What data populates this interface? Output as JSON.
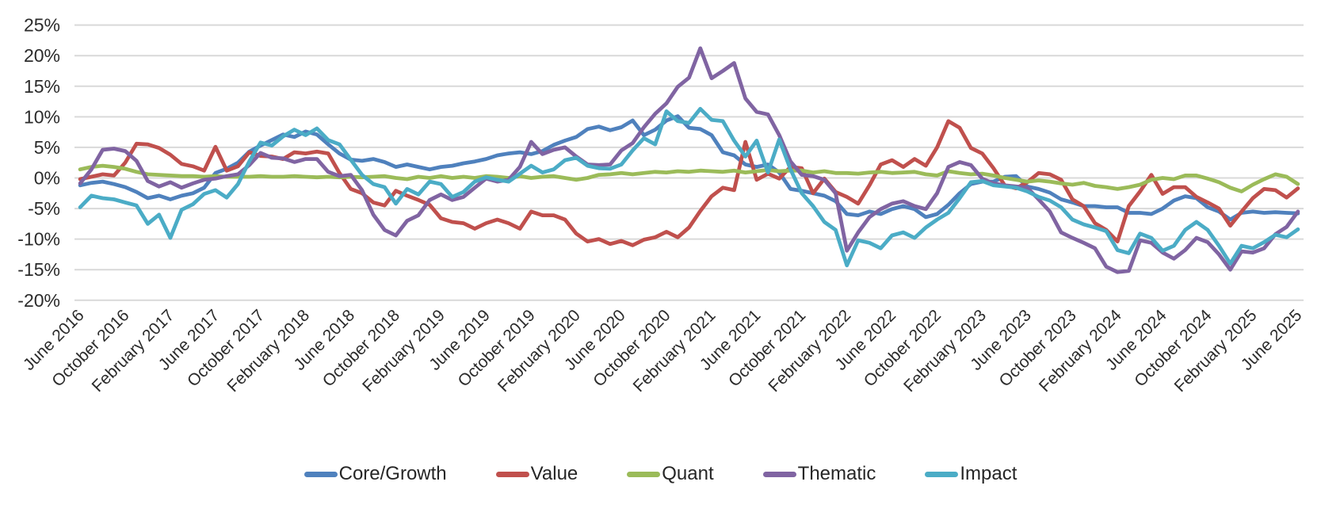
{
  "chart_data": {
    "type": "line",
    "title": "",
    "xlabel": "",
    "ylabel": "",
    "x_start": "June 2016",
    "x_end": "June 2025",
    "x_frequency": "monthly",
    "points_per_series": 109,
    "x_tick_every": 4,
    "x_tick_labels": [
      "June 2016",
      "October 2016",
      "February 2017",
      "June 2017",
      "October 2017",
      "February 2018",
      "June 2018",
      "October 2018",
      "February 2019",
      "June 2019",
      "October 2019",
      "February 2020",
      "June 2020",
      "October 2020",
      "February 2021",
      "June 2021",
      "October 2021",
      "February 2022",
      "June 2022",
      "October 2022",
      "February 2023",
      "June 2023",
      "October 2023",
      "February 2024",
      "June 2024",
      "October 2024",
      "February 2025",
      "June 2025"
    ],
    "ylim": [
      -20,
      25
    ],
    "y_ticks": [
      25,
      20,
      15,
      10,
      5,
      0,
      -5,
      -10,
      -15,
      -20
    ],
    "y_tick_suffix": "%",
    "grid": "horizontal",
    "grid_color": "#d9d9d9",
    "text_color": "#2b2b2b",
    "legend_position": "bottom",
    "series": [
      {
        "name": "Core/Growth",
        "color": "#4F81BD",
        "values": [
          -1.2,
          -0.8,
          -0.6,
          -1.0,
          -1.5,
          -2.3,
          -3.3,
          -2.9,
          -3.5,
          -2.9,
          -2.5,
          -1.6,
          0.8,
          1.5,
          2.5,
          4.3,
          5.3,
          6.2,
          7.1,
          6.7,
          7.6,
          7.1,
          5.5,
          4.0,
          3.0,
          2.8,
          3.1,
          2.6,
          1.8,
          2.2,
          1.8,
          1.4,
          1.8,
          2.0,
          2.4,
          2.7,
          3.1,
          3.7,
          4.0,
          4.2,
          3.9,
          4.4,
          5.4,
          6.1,
          6.7,
          8.0,
          8.4,
          7.8,
          8.3,
          9.4,
          7.0,
          7.9,
          9.4,
          10.1,
          8.2,
          8.0,
          7.0,
          4.2,
          3.7,
          2.2,
          1.8,
          2.2,
          0.9,
          -1.8,
          -2.1,
          -2.5,
          -2.9,
          -3.8,
          -5.9,
          -6.1,
          -5.5,
          -5.9,
          -5.1,
          -4.6,
          -5.1,
          -6.4,
          -5.9,
          -4.4,
          -2.5,
          -1.0,
          -0.6,
          -0.6,
          0.2,
          0.3,
          -1.4,
          -1.8,
          -2.4,
          -3.5,
          -4.0,
          -4.6,
          -4.6,
          -4.8,
          -4.8,
          -5.7,
          -5.7,
          -5.9,
          -5.0,
          -3.7,
          -3.0,
          -3.3,
          -4.8,
          -5.5,
          -6.8,
          -5.7,
          -5.5,
          -5.7,
          -5.6,
          -5.7,
          -5.8
        ]
      },
      {
        "name": "Value",
        "color": "#C0504D",
        "values": [
          -0.2,
          0.2,
          0.6,
          0.4,
          2.5,
          5.6,
          5.5,
          4.9,
          3.8,
          2.3,
          1.9,
          1.2,
          5.1,
          1.2,
          1.9,
          4.2,
          3.6,
          3.5,
          3.1,
          4.2,
          4.0,
          4.3,
          4.0,
          0.8,
          -1.8,
          -2.5,
          -4.0,
          -4.5,
          -2.1,
          -2.9,
          -3.6,
          -4.4,
          -6.6,
          -7.2,
          -7.4,
          -8.3,
          -7.4,
          -6.8,
          -7.4,
          -8.3,
          -5.5,
          -6.1,
          -6.1,
          -6.8,
          -9.1,
          -10.4,
          -10.0,
          -10.8,
          -10.3,
          -11.0,
          -10.1,
          -9.7,
          -8.8,
          -9.7,
          -8.1,
          -5.4,
          -3.0,
          -1.6,
          -2.0,
          5.9,
          -0.3,
          0.7,
          -0.1,
          1.8,
          1.6,
          -2.5,
          -0.1,
          -2.3,
          -3.1,
          -4.2,
          -1.2,
          2.2,
          2.9,
          1.8,
          3.1,
          2.0,
          5.0,
          9.3,
          8.2,
          4.9,
          4.0,
          1.6,
          -1.2,
          -1.7,
          -0.7,
          0.8,
          0.6,
          -0.3,
          -3.5,
          -4.6,
          -7.4,
          -8.5,
          -10.4,
          -4.6,
          -2.2,
          0.5,
          -2.6,
          -1.5,
          -1.5,
          -3.1,
          -4.0,
          -5.0,
          -7.8,
          -5.5,
          -3.3,
          -1.8,
          -2.0,
          -3.2,
          -1.7
        ]
      },
      {
        "name": "Quant",
        "color": "#9BBB59",
        "values": [
          1.4,
          1.8,
          2.0,
          1.8,
          1.5,
          1.0,
          0.6,
          0.5,
          0.4,
          0.3,
          0.3,
          0.2,
          0.3,
          0.2,
          0.2,
          0.2,
          0.3,
          0.2,
          0.2,
          0.3,
          0.2,
          0.1,
          0.2,
          0.1,
          0.2,
          0.1,
          0.2,
          0.3,
          0.0,
          -0.2,
          0.2,
          0.0,
          0.3,
          0.0,
          0.2,
          0.0,
          0.3,
          0.2,
          0.0,
          0.3,
          0.0,
          0.2,
          0.3,
          0.0,
          -0.3,
          0.0,
          0.5,
          0.6,
          0.8,
          0.6,
          0.8,
          1.0,
          0.9,
          1.1,
          1.0,
          1.2,
          1.1,
          1.0,
          1.2,
          0.9,
          1.1,
          1.3,
          1.1,
          1.2,
          1.2,
          0.9,
          1.1,
          0.8,
          0.8,
          0.7,
          0.9,
          1.0,
          0.8,
          0.9,
          1.0,
          0.6,
          0.4,
          1.1,
          0.8,
          0.6,
          0.7,
          0.4,
          0.0,
          -0.3,
          -0.6,
          -0.4,
          -0.6,
          -0.9,
          -1.1,
          -0.8,
          -1.3,
          -1.5,
          -1.8,
          -1.5,
          -1.1,
          -0.3,
          0.0,
          -0.2,
          0.4,
          0.4,
          -0.1,
          -0.7,
          -1.6,
          -2.2,
          -1.1,
          -0.2,
          0.6,
          0.2,
          -1.0
        ]
      },
      {
        "name": "Thematic",
        "color": "#8064A2",
        "values": [
          -0.9,
          1.4,
          4.6,
          4.8,
          4.4,
          2.8,
          -0.5,
          -1.4,
          -0.7,
          -1.6,
          -0.9,
          -0.3,
          -0.1,
          0.3,
          0.6,
          2.1,
          4.1,
          3.3,
          3.2,
          2.6,
          3.1,
          3.1,
          1.0,
          0.3,
          0.5,
          -2.0,
          -6.0,
          -8.5,
          -9.4,
          -7.0,
          -6.1,
          -3.6,
          -2.7,
          -3.6,
          -3.1,
          -1.6,
          -0.1,
          -0.6,
          -0.3,
          1.8,
          5.9,
          3.9,
          4.6,
          5.0,
          3.5,
          2.2,
          2.1,
          2.2,
          4.5,
          5.7,
          8.3,
          10.5,
          12.2,
          14.9,
          16.4,
          21.2,
          16.3,
          17.5,
          18.8,
          13.0,
          10.8,
          10.4,
          7.0,
          2.7,
          0.5,
          0.3,
          -0.3,
          -2.5,
          -11.9,
          -8.9,
          -6.4,
          -5.1,
          -4.2,
          -3.8,
          -4.6,
          -5.1,
          -2.5,
          1.8,
          2.6,
          2.1,
          -0.1,
          -0.9,
          -1.2,
          -1.4,
          -1.6,
          -3.5,
          -5.5,
          -8.9,
          -9.8,
          -10.6,
          -11.5,
          -14.5,
          -15.4,
          -15.2,
          -10.2,
          -10.6,
          -12.2,
          -13.2,
          -11.8,
          -9.8,
          -10.5,
          -12.5,
          -15.0,
          -12.0,
          -12.2,
          -11.5,
          -9.2,
          -8.0,
          -5.5
        ]
      },
      {
        "name": "Impact",
        "color": "#4BACC6",
        "values": [
          -4.8,
          -2.9,
          -3.3,
          -3.5,
          -4.0,
          -4.5,
          -7.5,
          -6.0,
          -9.8,
          -5.2,
          -4.3,
          -2.6,
          -2.0,
          -3.2,
          -1.0,
          2.7,
          5.8,
          5.3,
          6.8,
          7.9,
          7.0,
          8.1,
          6.2,
          5.5,
          3.0,
          0.5,
          -1.0,
          -1.5,
          -4.2,
          -1.8,
          -2.7,
          -0.6,
          -1.0,
          -3.1,
          -2.3,
          -0.6,
          0.1,
          -0.3,
          -0.6,
          0.7,
          2.0,
          0.9,
          1.4,
          2.9,
          3.3,
          2.0,
          1.6,
          1.5,
          2.2,
          4.5,
          6.5,
          5.5,
          10.9,
          9.3,
          9.0,
          11.3,
          9.5,
          9.3,
          6.1,
          3.5,
          6.1,
          0.9,
          6.3,
          1.4,
          -2.5,
          -4.6,
          -7.2,
          -8.5,
          -14.3,
          -10.2,
          -10.6,
          -11.5,
          -9.4,
          -8.9,
          -9.8,
          -8.1,
          -6.8,
          -5.7,
          -3.3,
          -0.7,
          -0.5,
          -1.2,
          -1.4,
          -1.6,
          -2.2,
          -3.1,
          -3.7,
          -4.8,
          -6.8,
          -7.6,
          -8.1,
          -8.7,
          -11.8,
          -12.3,
          -9.1,
          -9.8,
          -11.9,
          -11.1,
          -8.5,
          -7.2,
          -8.5,
          -11.1,
          -14.0,
          -11.1,
          -11.5,
          -10.5,
          -9.3,
          -9.7,
          -8.4
        ]
      }
    ]
  }
}
